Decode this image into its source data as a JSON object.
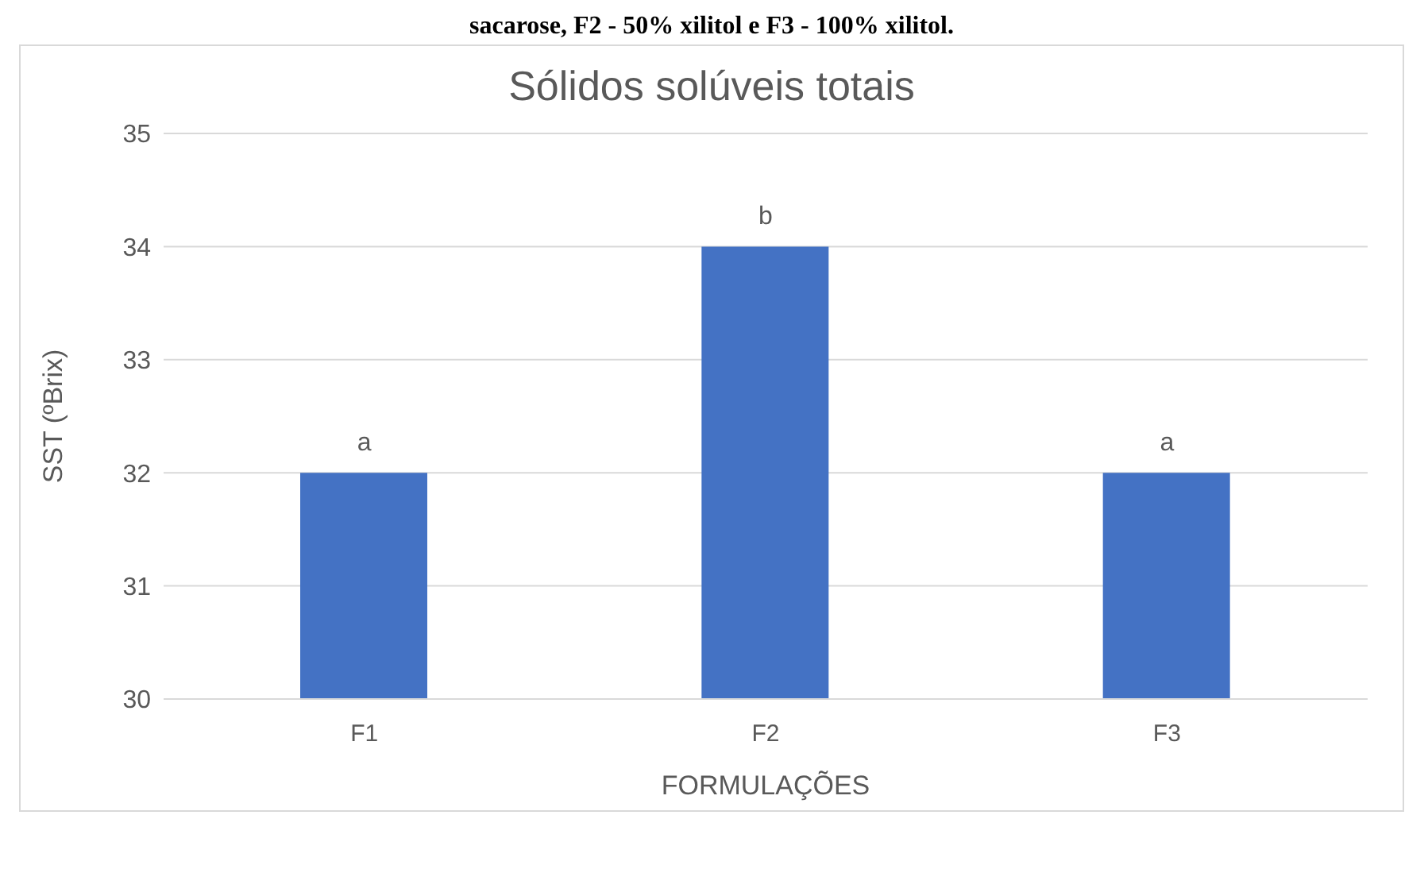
{
  "chart_data": {
    "type": "bar",
    "title": "Sólidos solúveis totais",
    "xlabel": "FORMULAÇÕES",
    "ylabel": "SST (ºBrix)",
    "categories": [
      "F1",
      "F2",
      "F3"
    ],
    "values": [
      32,
      34,
      32
    ],
    "color": "#4472c4",
    "ylim": [
      30,
      35
    ],
    "yticks": [
      30,
      31,
      32,
      33,
      34,
      35
    ],
    "grid": "y",
    "annotations": [
      "sacarose, F2 - 50% xilitol e F3 - 100% xilitol.",
      {
        "text": "a",
        "x": "F1",
        "y": 32
      },
      {
        "text": "b",
        "x": "F2",
        "y": 34
      },
      {
        "text": "a",
        "x": "F3",
        "y": 32
      }
    ]
  }
}
